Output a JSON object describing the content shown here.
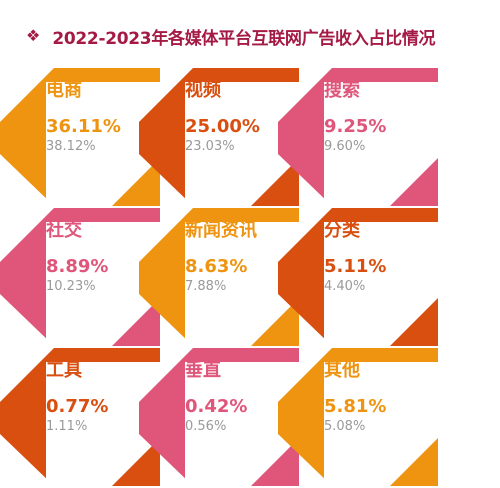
{
  "header": {
    "bullet_icon": "diamond-bullet-icon",
    "title": "2022-2023年各媒体平台互联网广告收入占比情况"
  },
  "colors": {
    "orange": "#ee9410",
    "red_orange": "#d84f10",
    "pink": "#e0557a",
    "grey": "#9a9a9a",
    "title": "#a51a45"
  },
  "chart_data": {
    "type": "table",
    "title": "2022-2023年各媒体平台互联网广告收入占比情况",
    "categories": [
      "电商",
      "视频",
      "搜索",
      "社交",
      "新闻资讯",
      "分类",
      "工具",
      "垂直",
      "其他"
    ],
    "series": [
      {
        "values": [
          36.11,
          25.0,
          9.25,
          8.89,
          8.63,
          5.11,
          0.77,
          0.42,
          5.81
        ]
      },
      {
        "values": [
          38.12,
          23.03,
          9.6,
          10.23,
          7.88,
          4.4,
          1.11,
          0.56,
          5.08
        ]
      }
    ],
    "cells": [
      {
        "label": "电商",
        "v2023": "36.11%",
        "v2022": "38.12%",
        "color": "#ee9410"
      },
      {
        "label": "视频",
        "v2023": "25.00%",
        "v2022": "23.03%",
        "color": "#d84f10"
      },
      {
        "label": "搜索",
        "v2023": "9.25%",
        "v2022": "9.60%",
        "color": "#e0557a"
      },
      {
        "label": "社交",
        "v2023": "8.89%",
        "v2022": "10.23%",
        "color": "#e0557a"
      },
      {
        "label": "新闻资讯",
        "v2023": "8.63%",
        "v2022": "7.88%",
        "color": "#ee9410"
      },
      {
        "label": "分类",
        "v2023": "5.11%",
        "v2022": "4.40%",
        "color": "#d84f10"
      },
      {
        "label": "工具",
        "v2023": "0.77%",
        "v2022": "1.11%",
        "color": "#d84f10"
      },
      {
        "label": "垂直",
        "v2023": "0.42%",
        "v2022": "0.56%",
        "color": "#e0557a"
      },
      {
        "label": "其他",
        "v2023": "5.81%",
        "v2022": "5.08%",
        "color": "#ee9410"
      }
    ]
  }
}
